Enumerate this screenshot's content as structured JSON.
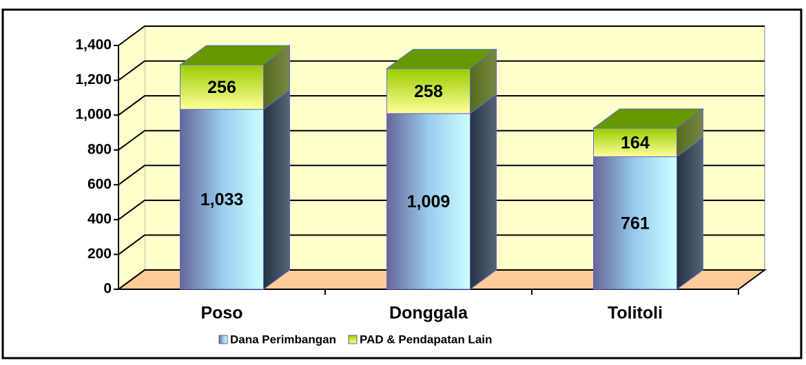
{
  "chart_data": {
    "type": "bar3d_stacked",
    "categories": [
      "Poso",
      "Donggala",
      "Tolitoli"
    ],
    "series": [
      {
        "name": "Dana Perimbangan",
        "color": "#9999ff",
        "values": [
          1033,
          1009,
          761
        ],
        "value_labels": [
          "1,033",
          "1,009",
          "761"
        ]
      },
      {
        "name": "PAD & Pendapatan Lain",
        "color": "#99cc00",
        "values": [
          256,
          258,
          164
        ]
      }
    ],
    "ylim": [
      0,
      1400
    ],
    "yticks": [
      0,
      200,
      400,
      600,
      800,
      {
        "value": 1000,
        "label": "1,000"
      },
      {
        "value": 1200,
        "label": "1,200"
      },
      {
        "value": 1400,
        "label": "1,400"
      }
    ],
    "grid": true,
    "legend": "bottom"
  }
}
